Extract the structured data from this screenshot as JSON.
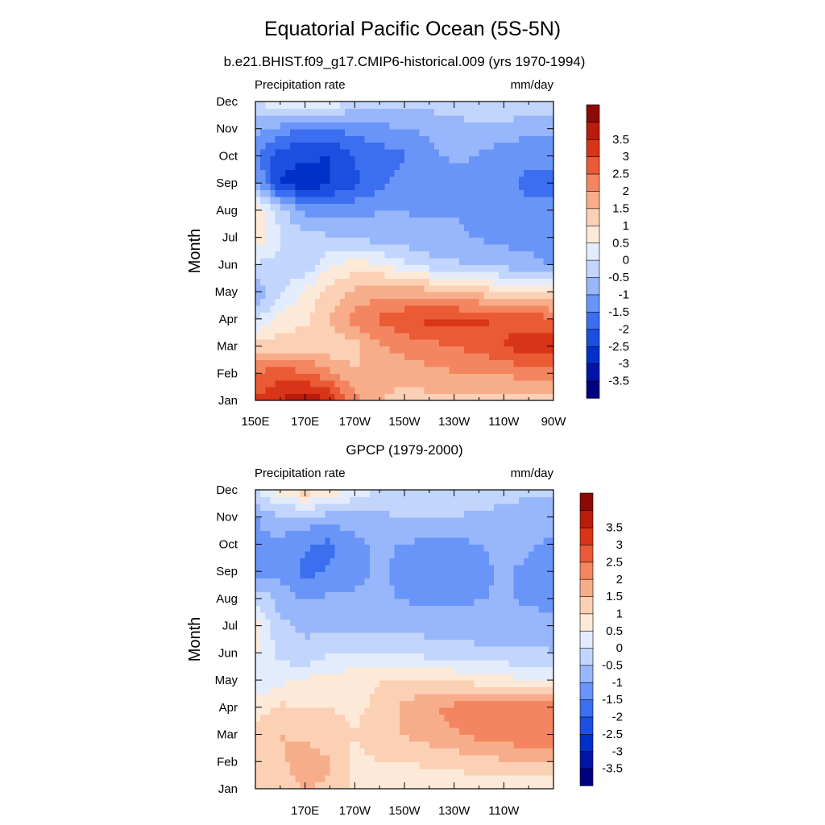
{
  "title": "Equatorial Pacific Ocean (5S-5N)",
  "colors": [
    "#000080",
    "#0015a8",
    "#0030c8",
    "#1a4fe0",
    "#3b6ff0",
    "#6a95f8",
    "#98b6fb",
    "#c2d5fc",
    "#e3ecfd",
    "#fde9d8",
    "#fbd0b5",
    "#f8ad8a",
    "#f38660",
    "#ea5a34",
    "#d83418",
    "#b91c0c",
    "#8c0a05"
  ],
  "colorbar": {
    "levels": [
      "-3.5",
      "-3",
      "-2.5",
      "-2",
      "-1.5",
      "-1",
      "-0.5",
      "0",
      "0.5",
      "1",
      "1.5",
      "2",
      "2.5",
      "3",
      "3.5"
    ]
  },
  "chart_data": [
    {
      "type": "heatmap",
      "title": "b.e21.BHIST.f09_g17.CMIP6-historical.009 (yrs 1970-1994)",
      "left_label": "Precipitation rate",
      "right_label": "mm/day",
      "ylabel": "Month",
      "x_ticks": [
        "150E",
        "170E",
        "170W",
        "150W",
        "130W",
        "110W",
        "90W"
      ],
      "y_ticks": [
        "Jan",
        "Feb",
        "Mar",
        "Apr",
        "May",
        "Jun",
        "Jul",
        "Aug",
        "Sep",
        "Oct",
        "Nov",
        "Dec"
      ],
      "x": [
        150,
        160,
        170,
        180,
        190,
        200,
        210,
        220,
        230,
        240,
        250,
        260,
        270
      ],
      "y": [
        "Jan",
        "Feb",
        "Mar",
        "Apr",
        "May",
        "Jun",
        "Jul",
        "Aug",
        "Sep",
        "Oct",
        "Nov",
        "Dec"
      ],
      "z": [
        [
          2.6,
          3.1,
          3.6,
          3.0,
          1.8,
          1.2,
          1.0,
          1.0,
          1.0,
          1.0,
          1.0,
          1.0,
          1.0
        ],
        [
          2.2,
          2.4,
          2.2,
          1.8,
          1.2,
          1.3,
          1.4,
          1.5,
          1.6,
          1.6,
          1.7,
          1.8,
          1.9
        ],
        [
          0.9,
          1.0,
          1.0,
          0.8,
          1.0,
          1.6,
          1.8,
          2.0,
          2.1,
          2.3,
          2.6,
          2.9,
          3.0
        ],
        [
          -0.3,
          0.4,
          0.6,
          1.2,
          1.9,
          2.2,
          2.5,
          2.7,
          2.7,
          2.7,
          2.5,
          2.4,
          2.3
        ],
        [
          -1.2,
          -0.3,
          0.3,
          0.9,
          1.3,
          1.5,
          1.5,
          1.4,
          1.2,
          1.0,
          0.8,
          0.6,
          0.5
        ],
        [
          -0.3,
          -0.4,
          -0.6,
          0.2,
          0.5,
          0.3,
          -0.1,
          -0.5,
          -0.6,
          -0.8,
          -0.9,
          -1.0,
          -1.2
        ],
        [
          0.6,
          -0.2,
          -0.6,
          -0.6,
          -0.8,
          -0.9,
          -1.0,
          -1.1,
          -1.1,
          -1.2,
          -1.3,
          -1.4,
          -1.6
        ],
        [
          0.7,
          -0.5,
          -1.3,
          -1.5,
          -1.3,
          -1.2,
          -1.2,
          -1.2,
          -1.2,
          -1.3,
          -1.5,
          -1.6,
          -1.6
        ],
        [
          -1.0,
          -2.6,
          -3.0,
          -2.6,
          -2.2,
          -1.8,
          -1.4,
          -1.3,
          -1.3,
          -1.4,
          -1.6,
          -1.7,
          -1.7
        ],
        [
          -1.5,
          -2.4,
          -2.5,
          -2.6,
          -2.1,
          -1.9,
          -1.7,
          -1.3,
          -1.1,
          -1.2,
          -1.5,
          -1.6,
          -1.6
        ],
        [
          -1.0,
          -1.4,
          -1.8,
          -1.6,
          -1.5,
          -1.3,
          -1.2,
          -1.1,
          -0.9,
          -0.8,
          -0.9,
          -1.0,
          -1.0
        ],
        [
          -0.3,
          0.2,
          0.4,
          0.2,
          -0.5,
          -0.6,
          -0.6,
          -0.5,
          -0.5,
          -0.4,
          -0.3,
          -0.4,
          -0.5
        ]
      ],
      "xlim": [
        150,
        270
      ],
      "zlim": [
        -4,
        4
      ]
    },
    {
      "type": "heatmap",
      "title": "GPCP (1979-2000)",
      "left_label": "Precipitation rate",
      "right_label": "mm/day",
      "ylabel": "Month",
      "x_ticks": [
        "170E",
        "170W",
        "150W",
        "130W",
        "110W"
      ],
      "y_ticks": [
        "Jan",
        "Feb",
        "Mar",
        "Apr",
        "May",
        "Jun",
        "Jul",
        "Aug",
        "Sep",
        "Oct",
        "Nov",
        "Dec"
      ],
      "x": [
        150,
        160,
        170,
        180,
        190,
        200,
        210,
        220,
        230,
        240,
        250,
        260,
        270
      ],
      "y": [
        "Jan",
        "Feb",
        "Mar",
        "Apr",
        "May",
        "Jun",
        "Jul",
        "Aug",
        "Sep",
        "Oct",
        "Nov",
        "Dec"
      ],
      "z": [
        [
          0.7,
          1.0,
          1.2,
          1.1,
          0.6,
          0.4,
          0.3,
          0.3,
          0.3,
          0.3,
          0.3,
          0.3,
          0.3
        ],
        [
          0.9,
          1.1,
          1.4,
          1.2,
          0.6,
          0.7,
          0.7,
          0.8,
          0.9,
          1.0,
          1.1,
          1.2,
          1.3
        ],
        [
          0.9,
          1.2,
          1.1,
          1.0,
          0.7,
          1.0,
          1.2,
          1.4,
          1.6,
          1.8,
          1.9,
          2.0,
          2.1
        ],
        [
          0.5,
          0.8,
          0.7,
          0.7,
          0.6,
          0.8,
          1.3,
          1.6,
          1.8,
          2.0,
          1.9,
          2.0,
          1.9
        ],
        [
          -0.2,
          0.1,
          0.3,
          0.5,
          0.6,
          0.7,
          0.8,
          0.8,
          0.7,
          0.5,
          0.4,
          0.3,
          0.2
        ],
        [
          0.3,
          -0.4,
          -0.6,
          -0.3,
          -0.3,
          -0.2,
          -0.3,
          -0.4,
          -0.5,
          -0.6,
          -0.6,
          -0.6,
          -0.7
        ],
        [
          0.5,
          -0.6,
          -0.8,
          -0.8,
          -0.8,
          -0.9,
          -0.9,
          -0.9,
          -0.9,
          -0.9,
          -0.9,
          -0.9,
          -0.9
        ],
        [
          -0.3,
          -0.9,
          -1.2,
          -1.1,
          -1.1,
          -1.1,
          -1.2,
          -1.3,
          -1.3,
          -1.2,
          -1.1,
          -1.3,
          -1.4
        ],
        [
          -1.4,
          -1.3,
          -1.8,
          -1.6,
          -1.3,
          -1.1,
          -1.3,
          -1.4,
          -1.4,
          -1.3,
          -1.1,
          -1.3,
          -1.4
        ],
        [
          -1.3,
          -1.3,
          -1.6,
          -1.8,
          -1.3,
          -1.1,
          -1.2,
          -1.3,
          -1.3,
          -1.2,
          -1.0,
          -1.1,
          -1.3
        ],
        [
          -1.2,
          -0.8,
          -0.9,
          -0.9,
          -0.9,
          -0.8,
          -0.7,
          -0.7,
          -0.7,
          -0.8,
          -0.9,
          -1.0,
          -1.0
        ],
        [
          -0.3,
          0.5,
          1.0,
          0.6,
          0.1,
          -0.3,
          -0.4,
          -0.4,
          -0.4,
          -0.4,
          -0.5,
          -0.6,
          -0.6
        ]
      ],
      "xlim": [
        150,
        270
      ],
      "zlim": [
        -4,
        4
      ]
    }
  ]
}
